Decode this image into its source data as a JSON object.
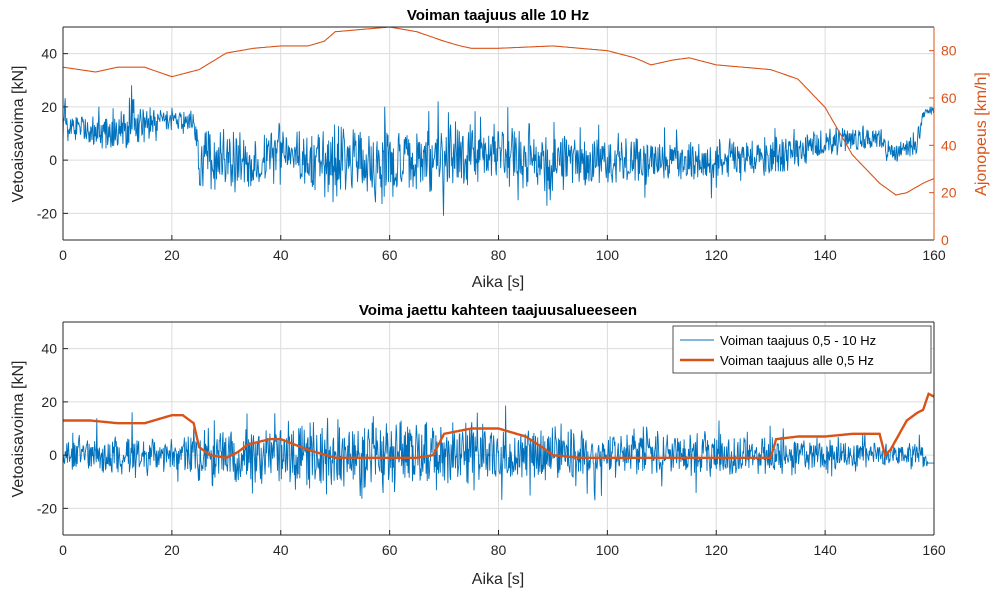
{
  "colors": {
    "blue": "#0072BD",
    "orange": "#D95319",
    "grid": "#dcdcdc",
    "axis": "#262626"
  },
  "chart_data": [
    {
      "type": "line",
      "title": "Voiman taajuus alle 10 Hz",
      "xlabel": "Aika [s]",
      "ylabel": "Vetoaisavoima [kN]",
      "y2label": "Ajonopeus [km/h]",
      "xlim": [
        0,
        160
      ],
      "ylim": [
        -30,
        50
      ],
      "y2lim": [
        0,
        90
      ],
      "xticks": [
        "0",
        "20",
        "40",
        "60",
        "80",
        "100",
        "120",
        "140",
        "160"
      ],
      "yticks": [
        "-20",
        "0",
        "20",
        "40"
      ],
      "y2ticks": [
        "0",
        "20",
        "40",
        "60",
        "80"
      ],
      "grid": true,
      "series": [
        {
          "axis": "left",
          "color": "#0072BD",
          "style": "noisy",
          "x": [
            0,
            3,
            8,
            12,
            18,
            24,
            25,
            30,
            35,
            40,
            45,
            50,
            55,
            60,
            65,
            70,
            75,
            80,
            90,
            100,
            110,
            120,
            130,
            135,
            140,
            145,
            150,
            152,
            155,
            157,
            158,
            159,
            160
          ],
          "y": [
            15,
            12,
            10,
            12,
            14,
            15,
            0,
            0,
            -1,
            5,
            0,
            -1,
            0,
            -1,
            -1,
            2,
            2,
            2,
            0,
            0,
            0,
            0,
            0,
            3,
            7,
            8,
            8,
            2,
            5,
            7,
            17,
            19,
            19
          ],
          "amplitude": [
            6,
            6,
            9,
            10,
            5,
            5,
            12,
            13,
            10,
            9,
            13,
            15,
            14,
            16,
            13,
            14,
            13,
            12,
            11,
            10,
            9,
            9,
            8,
            7,
            6,
            6,
            5,
            5,
            5,
            5,
            2,
            2,
            2
          ]
        },
        {
          "axis": "right",
          "color": "#D95319",
          "style": "smooth",
          "x": [
            0,
            3,
            6,
            10,
            15,
            20,
            25,
            30,
            35,
            40,
            45,
            48,
            50,
            60,
            65,
            70,
            73,
            75,
            80,
            90,
            100,
            105,
            108,
            112,
            115,
            120,
            125,
            130,
            135,
            140,
            145,
            150,
            153,
            155,
            158,
            160
          ],
          "y": [
            73,
            72,
            71,
            73,
            73,
            69,
            72,
            79,
            81,
            82,
            82,
            84,
            88,
            90,
            88,
            84,
            82,
            81,
            81,
            82,
            80,
            77,
            74,
            76,
            77,
            74,
            73,
            72,
            68,
            56,
            36,
            24,
            19,
            20,
            24,
            26
          ]
        }
      ]
    },
    {
      "type": "line",
      "title": "Voima jaettu kahteen taajuusalueeseen",
      "xlabel": "Aika [s]",
      "ylabel": "Vetoaisavoima [kN]",
      "xlim": [
        0,
        160
      ],
      "ylim": [
        -30,
        50
      ],
      "xticks": [
        "0",
        "20",
        "40",
        "60",
        "80",
        "100",
        "120",
        "140",
        "160"
      ],
      "yticks": [
        "-20",
        "0",
        "20",
        "40"
      ],
      "grid": true,
      "legend_position": "top-right",
      "series": [
        {
          "name": "Voiman taajuus 0,5 - 10 Hz",
          "color": "#0072BD",
          "style": "noisy",
          "x": [
            0,
            12,
            20,
            25,
            35,
            45,
            55,
            60,
            70,
            80,
            90,
            100,
            110,
            120,
            130,
            140,
            150,
            158,
            159,
            160
          ],
          "y": [
            0,
            0,
            0,
            0,
            0,
            0,
            0,
            0,
            0,
            0,
            0,
            0,
            0,
            0,
            0,
            0,
            0,
            0,
            -3,
            -3
          ],
          "amplitude": [
            6,
            10,
            6,
            12,
            11,
            15,
            14,
            16,
            14,
            12,
            11,
            10,
            9,
            9,
            8,
            7,
            5,
            5,
            0,
            0
          ]
        },
        {
          "name": "Voiman taajuus alle 0,5 Hz",
          "color": "#D95319",
          "style": "smooth",
          "x": [
            0,
            5,
            10,
            15,
            20,
            22,
            24,
            25,
            27,
            30,
            32,
            34,
            36,
            38,
            40,
            45,
            50,
            55,
            60,
            65,
            68,
            70,
            75,
            80,
            85,
            88,
            90,
            95,
            100,
            110,
            120,
            125,
            130,
            131,
            135,
            140,
            145,
            150,
            151,
            152,
            155,
            157,
            158,
            159,
            160
          ],
          "y": [
            13,
            13,
            12,
            12,
            15,
            15,
            12,
            3,
            0,
            -1,
            1,
            4,
            5,
            6,
            6,
            2,
            -1,
            -1,
            -1,
            -1,
            0,
            8,
            10,
            10,
            7,
            3,
            0,
            -1,
            -1,
            -1,
            -1,
            -1,
            -1,
            6,
            7,
            7,
            8,
            8,
            0,
            2,
            13,
            16,
            17,
            23,
            22
          ]
        }
      ]
    }
  ]
}
